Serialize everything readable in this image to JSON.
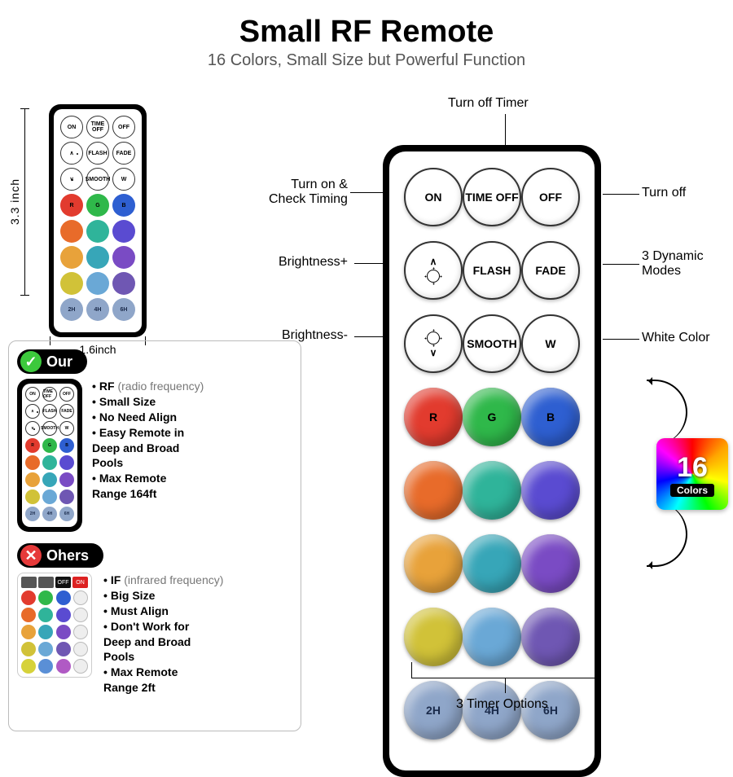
{
  "header": {
    "title": "Small RF Remote",
    "subtitle": "16 Colors, Small Size but Powerful Function"
  },
  "dimensions": {
    "height_label": "3.3 inch",
    "width_label": "1.6inch"
  },
  "buttons": {
    "row1": [
      "ON",
      "TIME OFF",
      "OFF"
    ],
    "row2_flash": "FLASH",
    "row2_fade": "FADE",
    "row3_smooth": "SMOOTH",
    "row3_w": "W",
    "rgb_labels": [
      "R",
      "G",
      "B"
    ],
    "timer_labels": [
      "2H",
      "4H",
      "6H"
    ]
  },
  "colors": {
    "row1": [
      "#e23b2e",
      "#2fb84a",
      "#2e5fd1"
    ],
    "row2": [
      "#e86b2a",
      "#2fb49a",
      "#5a4bd1"
    ],
    "row3": [
      "#e8a23a",
      "#37a6b8",
      "#7a4bc4"
    ],
    "row4": [
      "#d1c238",
      "#6aa8d6",
      "#6f57b3"
    ],
    "timer": [
      "#8fa6c9",
      "#8fa6c9",
      "#8fa6c9"
    ]
  },
  "callouts": {
    "top": "Turn off Timer",
    "left1": "Turn on &\nCheck Timing",
    "left2": "Brightness+",
    "left3": "Brightness-",
    "right1": "Turn off",
    "right2": "3 Dynamic\nModes",
    "right3": "White Color",
    "bottom": "3 Timer Options"
  },
  "badge16": {
    "num": "16",
    "text": "Colors"
  },
  "compare": {
    "our_label": "Our",
    "our_points": [
      "RF ",
      "(radio frequency)",
      "Small Size",
      "No Need Align",
      "Easy Remote in\nDeep and Broad\nPools",
      "Max Remote\nRange 164ft"
    ],
    "others_label": "Ohers",
    "others_points": [
      "IF ",
      "(infrared frequency)",
      "Big Size",
      "Must Align",
      "Don't Work for\nDeep and Broad\nPools",
      "Max Remote\nRange 2ft"
    ],
    "ir_top": [
      "",
      "",
      "OFF",
      "ON"
    ],
    "ir_top_colors": [
      "#555",
      "#555",
      "#111",
      "#d22"
    ],
    "ir_colors": [
      "#e23b2e",
      "#2fb84a",
      "#2e5fd1",
      "#eee",
      "#e86b2a",
      "#2fb49a",
      "#5a4bd1",
      "#eee",
      "#e8a23a",
      "#37a6b8",
      "#7a4bc4",
      "#eee",
      "#d1c238",
      "#6aa8d6",
      "#6f57b3",
      "#eee",
      "#d6d23a",
      "#5a8fd6",
      "#b05ac4",
      "#eee"
    ]
  }
}
